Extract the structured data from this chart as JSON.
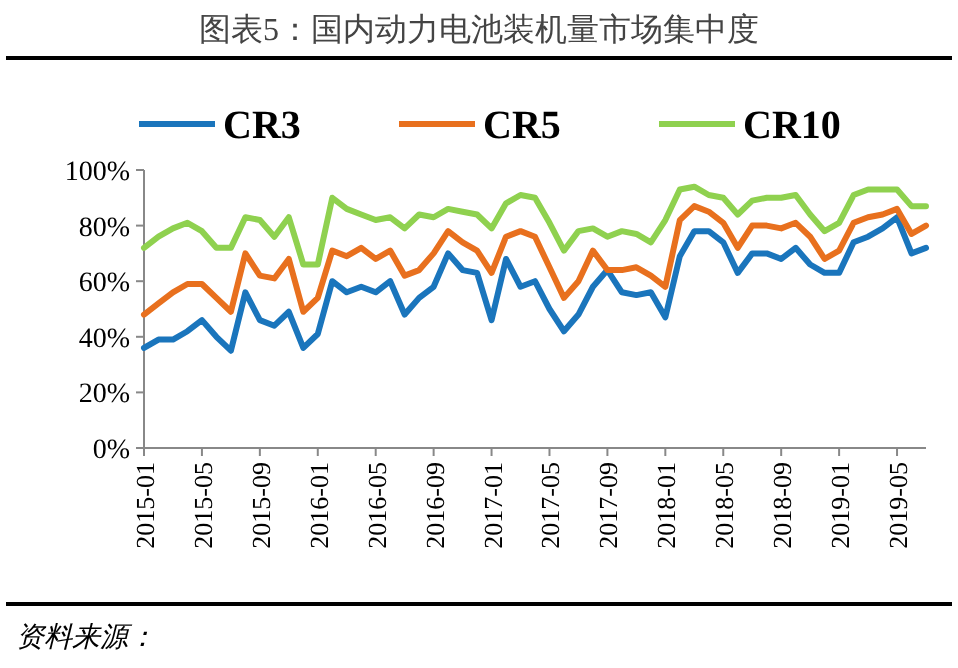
{
  "chart_data": {
    "type": "line",
    "title": "图表5：国内动力电池装机量市场集中度",
    "x": [
      "2015-01",
      "2015-02",
      "2015-03",
      "2015-04",
      "2015-05",
      "2015-06",
      "2015-07",
      "2015-08",
      "2015-09",
      "2015-10",
      "2015-11",
      "2015-12",
      "2016-01",
      "2016-02",
      "2016-03",
      "2016-04",
      "2016-05",
      "2016-06",
      "2016-07",
      "2016-08",
      "2016-09",
      "2016-10",
      "2016-11",
      "2016-12",
      "2017-01",
      "2017-02",
      "2017-03",
      "2017-04",
      "2017-05",
      "2017-06",
      "2017-07",
      "2017-08",
      "2017-09",
      "2017-10",
      "2017-11",
      "2017-12",
      "2018-01",
      "2018-02",
      "2018-03",
      "2018-04",
      "2018-05",
      "2018-06",
      "2018-07",
      "2018-08",
      "2018-09",
      "2018-10",
      "2018-11",
      "2018-12",
      "2019-01",
      "2019-02",
      "2019-03",
      "2019-04",
      "2019-05",
      "2019-06",
      "2019-07"
    ],
    "series": [
      {
        "name": "CR3",
        "color": "#1a75bc",
        "values": [
          36,
          39,
          39,
          42,
          46,
          40,
          35,
          56,
          46,
          44,
          49,
          36,
          41,
          60,
          56,
          58,
          56,
          60,
          48,
          54,
          58,
          70,
          64,
          63,
          46,
          68,
          58,
          60,
          50,
          42,
          48,
          58,
          64,
          56,
          55,
          56,
          47,
          69,
          78,
          78,
          74,
          63,
          70,
          70,
          68,
          72,
          66,
          63,
          63,
          74,
          76,
          79,
          83,
          70,
          72
        ]
      },
      {
        "name": "CR5",
        "color": "#e8701e",
        "values": [
          48,
          52,
          56,
          59,
          59,
          54,
          49,
          70,
          62,
          61,
          68,
          49,
          54,
          71,
          69,
          72,
          68,
          71,
          62,
          64,
          70,
          78,
          74,
          71,
          63,
          76,
          78,
          76,
          65,
          54,
          60,
          71,
          64,
          64,
          65,
          62,
          58,
          82,
          87,
          85,
          81,
          72,
          80,
          80,
          79,
          81,
          76,
          68,
          71,
          81,
          83,
          84,
          86,
          77,
          80
        ]
      },
      {
        "name": "CR10",
        "color": "#8fd14f",
        "values": [
          72,
          76,
          79,
          81,
          78,
          72,
          72,
          83,
          82,
          76,
          83,
          66,
          66,
          90,
          86,
          84,
          82,
          83,
          79,
          84,
          83,
          86,
          85,
          84,
          79,
          88,
          91,
          90,
          81,
          71,
          78,
          79,
          76,
          78,
          77,
          74,
          82,
          93,
          94,
          91,
          90,
          84,
          89,
          90,
          90,
          91,
          84,
          78,
          81,
          91,
          93,
          93,
          93,
          87,
          87
        ]
      }
    ],
    "xlim": [
      "2015-01",
      "2019-07"
    ],
    "xticks": [
      "2015-01",
      "2015-05",
      "2015-09",
      "2016-01",
      "2016-05",
      "2016-09",
      "2017-01",
      "2017-05",
      "2017-09",
      "2018-01",
      "2018-05",
      "2018-09",
      "2019-01",
      "2019-05"
    ],
    "ylim": [
      0,
      100
    ],
    "yticks": [
      {
        "value": 0,
        "label": "0%"
      },
      {
        "value": 20,
        "label": "20%"
      },
      {
        "value": 40,
        "label": "40%"
      },
      {
        "value": 60,
        "label": "60%"
      },
      {
        "value": 80,
        "label": "80%"
      },
      {
        "value": 100,
        "label": "100%"
      }
    ],
    "legend": "top",
    "grid": false,
    "marker": "none",
    "line_style": "solid",
    "annotations": [
      "资料来源："
    ]
  }
}
